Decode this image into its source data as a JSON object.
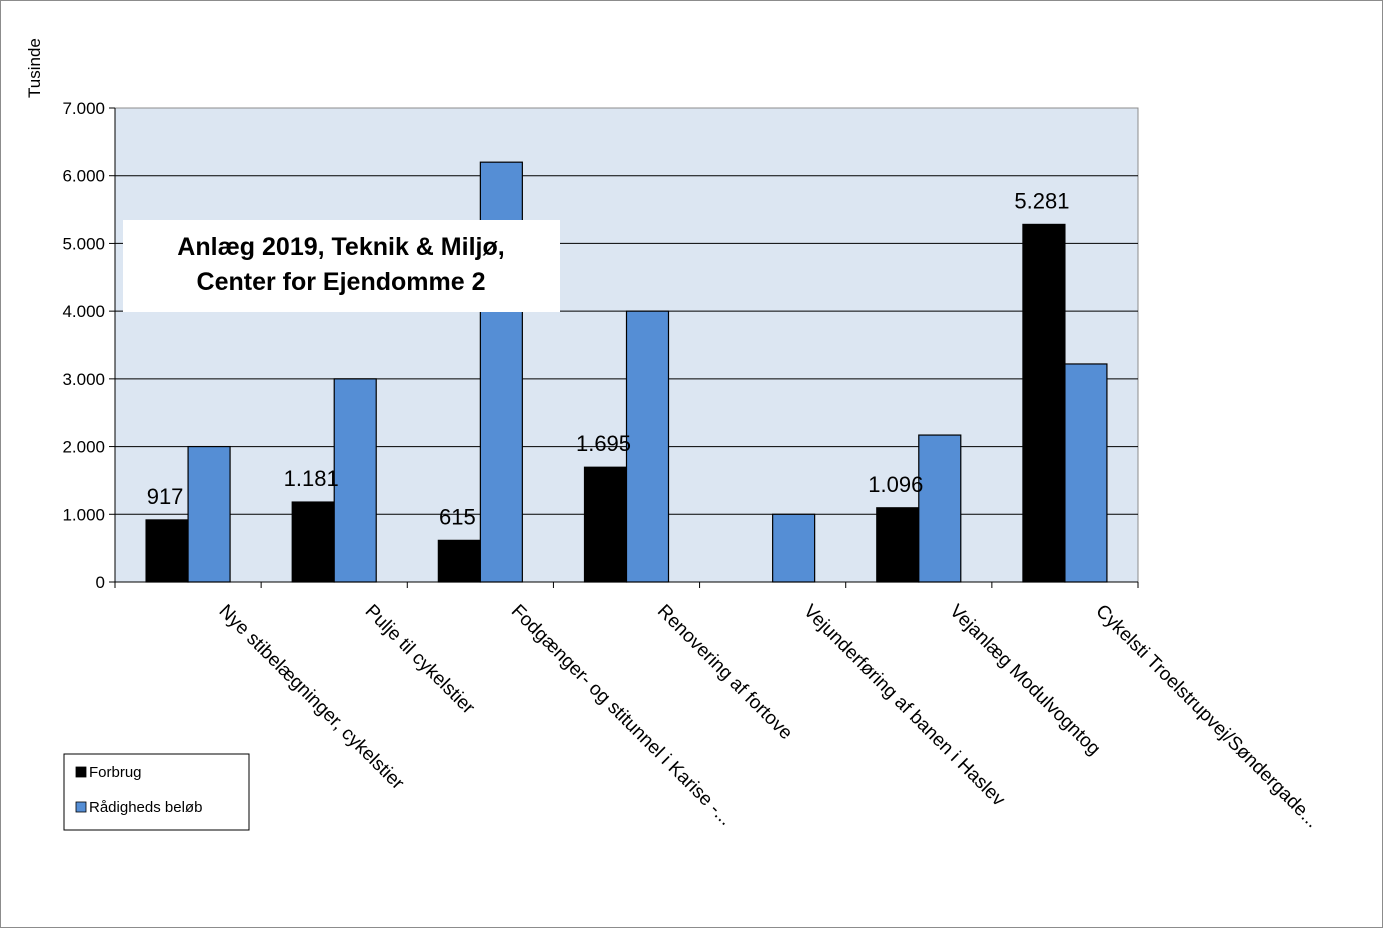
{
  "chart_data": {
    "type": "bar",
    "title_lines": [
      "Anlæg 2019, Teknik & Miljø,",
      "Center for Ejendomme 2"
    ],
    "unit_label": "Tusinde",
    "categories": [
      "Nye stibelægninger, cykelstier",
      "Pulje til cykelstier",
      "Fodgænger- og stitunnel i Karise -...",
      "Renovering af fortove",
      "Vejunderføring af banen i Haslev",
      "Vejanlæg Modulvogntog",
      "Cykelsti Troelstrupvej/Søndergade..."
    ],
    "series": [
      {
        "name": "Forbrug",
        "values": [
          917,
          1181,
          615,
          1695,
          0,
          1096,
          5281
        ],
        "color": "#000000"
      },
      {
        "name": "Rådigheds beløb",
        "values": [
          2000,
          3000,
          6200,
          4000,
          1000,
          2170,
          3220
        ],
        "color": "#558ed5"
      }
    ],
    "data_labels": [
      "917",
      "1.181",
      "615",
      "1.695",
      "",
      "1.096",
      "5.281"
    ],
    "y_ticks": [
      "0",
      "1.000",
      "2.000",
      "3.000",
      "4.000",
      "5.000",
      "6.000",
      "7.000"
    ],
    "ylim": [
      0,
      7000
    ],
    "grid": true,
    "plot_bg": "#dce6f2",
    "legend_position": "bottom-left"
  }
}
